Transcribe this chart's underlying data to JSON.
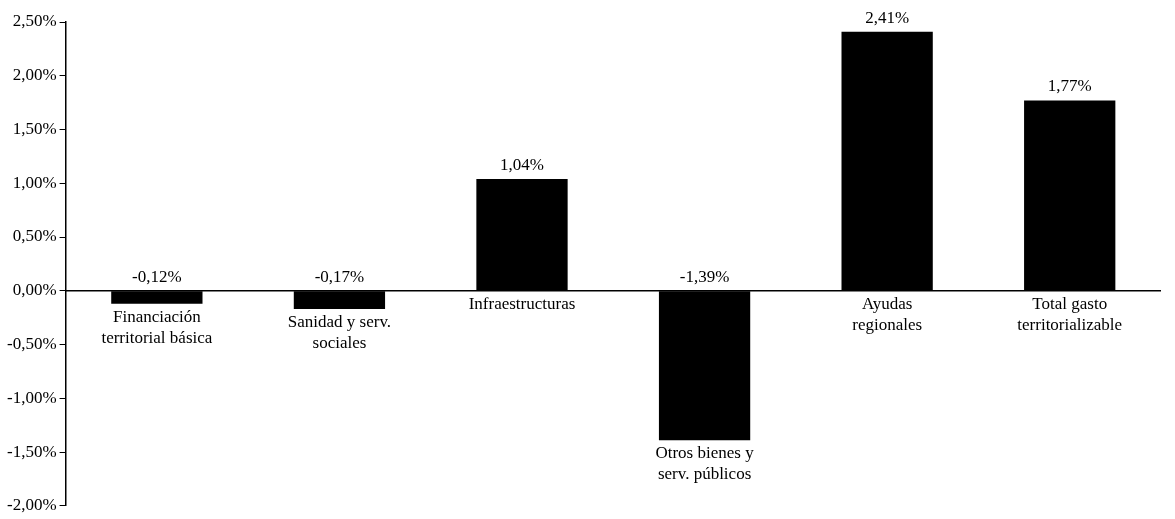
{
  "chart_data": {
    "type": "bar",
    "categories": [
      "Financiación\nterritorial básica",
      "Sanidad y serv.\nsociales",
      "Infraestructuras",
      "Otros bienes y\nserv. públicos",
      "Ayudas\nregionales",
      "Total gasto\nterritorializable"
    ],
    "values": [
      -0.12,
      -0.17,
      1.04,
      -1.39,
      2.41,
      1.77
    ],
    "value_labels": [
      "-0,12%",
      "-0,17%",
      "1,04%",
      "-1,39%",
      "2,41%",
      "1,77%"
    ],
    "color": "#000000",
    "ylim": [
      -2,
      2.5
    ],
    "yticks": [
      {
        "value": -2,
        "label": "-2,00%"
      },
      {
        "value": -1.5,
        "label": "-1,50%"
      },
      {
        "value": -1,
        "label": "-1,00%"
      },
      {
        "value": -0.5,
        "label": "-0,50%"
      },
      {
        "value": 0,
        "label": "0,00%"
      },
      {
        "value": 0.5,
        "label": "0,50%"
      },
      {
        "value": 1,
        "label": "1,00%"
      },
      {
        "value": 1.5,
        "label": "1,50%"
      },
      {
        "value": 2,
        "label": "2,00%"
      },
      {
        "value": 2.5,
        "label": "2,50%"
      }
    ],
    "grid": false,
    "legend": false
  }
}
